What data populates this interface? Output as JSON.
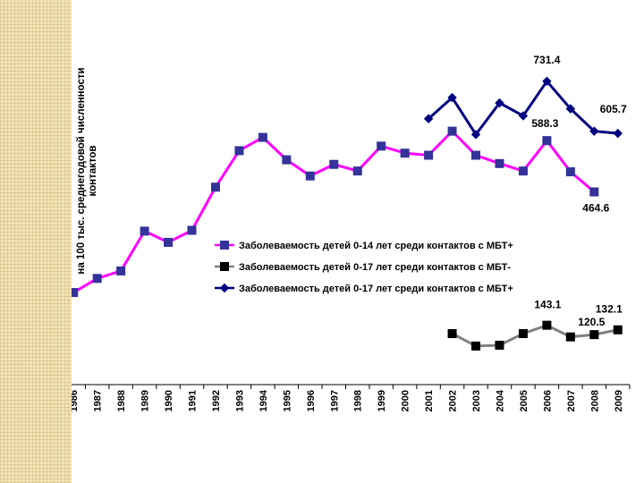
{
  "chart_data": {
    "type": "line",
    "title": "",
    "xlabel": "",
    "ylabel": "на 100 тыс. среднегодовой численности контактов",
    "ylim": [
      0,
      800
    ],
    "yticks": [
      0,
      100,
      200,
      300,
      400,
      500,
      600,
      700,
      800
    ],
    "categories": [
      "1986",
      "1987",
      "1988",
      "1989",
      "1990",
      "1991",
      "1992",
      "1993",
      "1994",
      "1995",
      "1996",
      "1997",
      "1998",
      "1999",
      "2000",
      "2001",
      "2002",
      "2003",
      "2004",
      "2005",
      "2006",
      "2007",
      "2008",
      "2009"
    ],
    "legend_position": "center-right",
    "grid": false,
    "series": [
      {
        "name": "Заболеваемость детей 0-14 лет среди контактов с МБТ+",
        "color": "#ff00ff",
        "marker": "square",
        "marker_color": "#333399",
        "values": [
          222,
          256,
          274,
          370,
          343,
          372,
          476,
          564,
          596,
          542,
          503,
          531,
          515,
          575,
          558,
          553,
          611,
          553,
          533,
          515,
          588.3,
          513,
          464.6,
          null
        ]
      },
      {
        "name": "Заболеваемость детей 0-17 лет среди контактов с МБТ-",
        "color": "#808080",
        "marker": "square",
        "marker_color": "#000000",
        "values": [
          null,
          null,
          null,
          null,
          null,
          null,
          null,
          null,
          null,
          null,
          null,
          null,
          null,
          null,
          null,
          null,
          123,
          93,
          95,
          123,
          143.1,
          115,
          120.5,
          132.1
        ]
      },
      {
        "name": "Заболеваемость детей 0-17 лет среди контактов с МБТ+",
        "color": "#000080",
        "marker": "diamond",
        "marker_color": "#000080",
        "values": [
          null,
          null,
          null,
          null,
          null,
          null,
          null,
          null,
          null,
          null,
          null,
          null,
          null,
          null,
          null,
          641,
          692,
          603,
          679,
          648,
          731.4,
          665,
          611,
          605.7
        ]
      }
    ],
    "annotations": [
      {
        "text": "731.4",
        "series": 2,
        "category": "2006"
      },
      {
        "text": "605.7",
        "series": 2,
        "category": "2009"
      },
      {
        "text": "588.3",
        "series": 0,
        "category": "2006"
      },
      {
        "text": "464.6",
        "series": 0,
        "category": "2008"
      },
      {
        "text": "143.1",
        "series": 1,
        "category": "2006"
      },
      {
        "text": "120.5",
        "series": 1,
        "category": "2008"
      },
      {
        "text": "132.1",
        "series": 1,
        "category": "2009"
      }
    ]
  }
}
